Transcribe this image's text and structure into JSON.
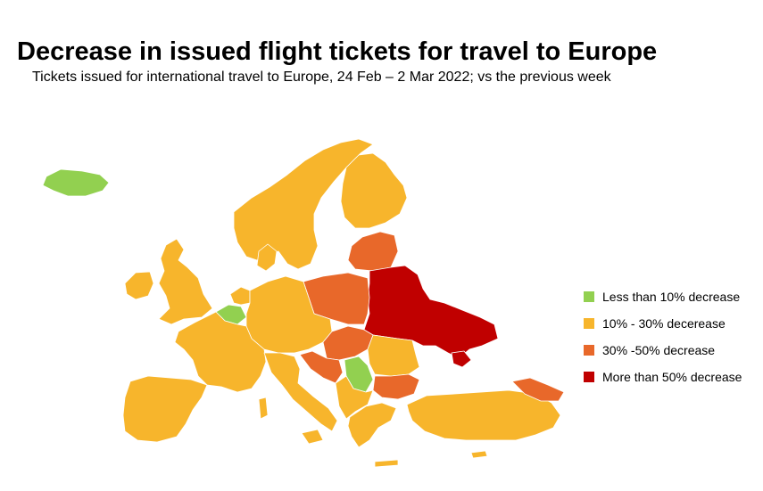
{
  "header": {
    "title": "Decrease in issued flight tickets for travel to Europe",
    "subtitle": "Tickets issued for international travel to Europe, 24 Feb – 2 Mar 2022; vs the previous week"
  },
  "categories": {
    "lt10": {
      "color": "#92d050"
    },
    "c10_30": {
      "color": "#f7b52c"
    },
    "c30_50": {
      "color": "#e8682a"
    },
    "gt50": {
      "color": "#c00000"
    }
  },
  "legend": [
    {
      "key": "lt10",
      "label": "Less than 10% decrease"
    },
    {
      "key": "c10_30",
      "label": "10% - 30% decerease"
    },
    {
      "key": "c30_50",
      "label": "30% -50% decrease"
    },
    {
      "key": "gt50",
      "label": "More than 50% decrease"
    }
  ]
}
